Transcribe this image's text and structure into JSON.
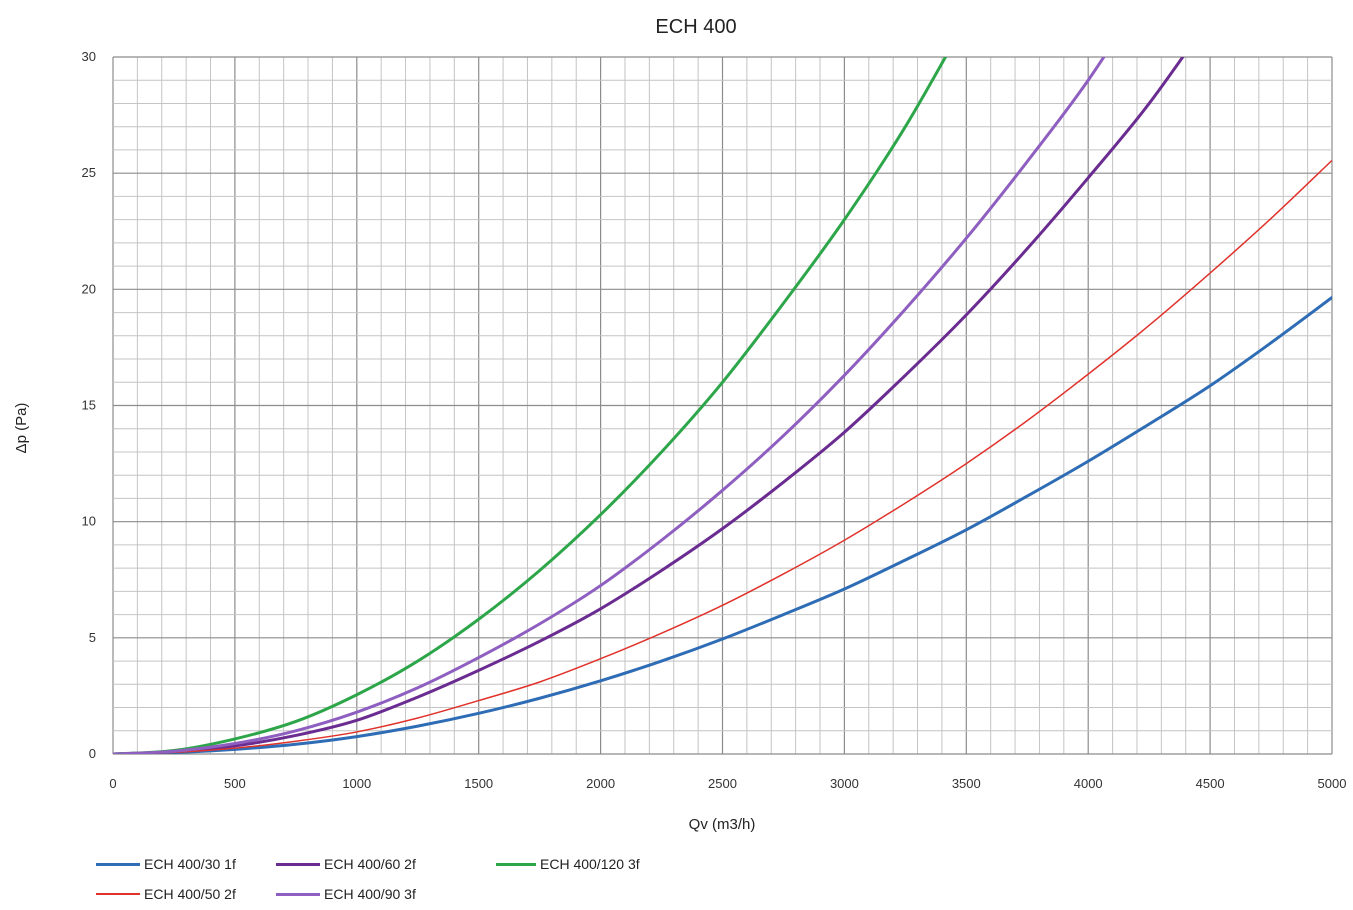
{
  "chart_data": {
    "type": "line",
    "title": "ECH 400",
    "xlabel": "Qv (m3/h)",
    "ylabel": "Δp (Pa)",
    "xlim": [
      0,
      5000
    ],
    "ylim": [
      0,
      30
    ],
    "xticks": [
      0,
      500,
      1000,
      1500,
      2000,
      2500,
      3000,
      3500,
      4000,
      4500,
      5000
    ],
    "yticks": [
      0,
      5,
      10,
      15,
      20,
      25,
      30
    ],
    "grid": true,
    "legend_position": "bottom",
    "x": [
      0,
      250,
      500,
      750,
      1000,
      1250,
      1500,
      1750,
      2000,
      2250,
      2500,
      2750,
      3000,
      3250,
      3500,
      3750,
      4000,
      4250,
      4500,
      4750,
      5000
    ],
    "series": [
      {
        "name": "ECH 400/30 1f",
        "color": "#2e6db5",
        "width": 3,
        "values": [
          0,
          0.06,
          0.2,
          0.42,
          0.75,
          1.2,
          1.75,
          2.4,
          3.15,
          4.0,
          4.95,
          6.0,
          7.1,
          8.35,
          9.65,
          11.1,
          12.6,
          14.2,
          15.85,
          17.7,
          19.65
        ]
      },
      {
        "name": "ECH 400/60 2f",
        "color": "#6a2c91",
        "width": 3,
        "values": [
          0,
          0.1,
          0.35,
          0.8,
          1.45,
          2.45,
          3.6,
          4.85,
          6.25,
          7.9,
          9.7,
          11.7,
          13.85,
          16.3,
          18.9,
          21.75,
          24.8,
          28.0,
          null,
          null,
          null
        ]
      },
      {
        "name": "ECH 400/120 3f",
        "color": "#2da64a",
        "width": 3,
        "values": [
          0,
          0.15,
          0.65,
          1.4,
          2.55,
          4.0,
          5.8,
          7.9,
          10.3,
          13.0,
          16.0,
          19.4,
          23.0,
          27.0,
          null,
          null,
          null,
          null,
          null,
          null,
          null
        ]
      },
      {
        "name": "ECH 400/50 2f",
        "color": "#e0322b",
        "width": 1.5,
        "values": [
          0,
          0.07,
          0.25,
          0.55,
          0.95,
          1.55,
          2.3,
          3.1,
          4.1,
          5.2,
          6.4,
          7.75,
          9.2,
          10.8,
          12.5,
          14.35,
          16.35,
          18.45,
          20.7,
          23.05,
          25.55
        ]
      },
      {
        "name": "ECH 400/90 3f",
        "color": "#8e5fc0",
        "width": 3,
        "values": [
          0,
          0.12,
          0.45,
          1.0,
          1.8,
          2.85,
          4.15,
          5.6,
          7.25,
          9.2,
          11.35,
          13.7,
          16.3,
          19.15,
          22.2,
          25.5,
          29.0,
          null,
          null,
          null,
          null
        ]
      }
    ]
  }
}
